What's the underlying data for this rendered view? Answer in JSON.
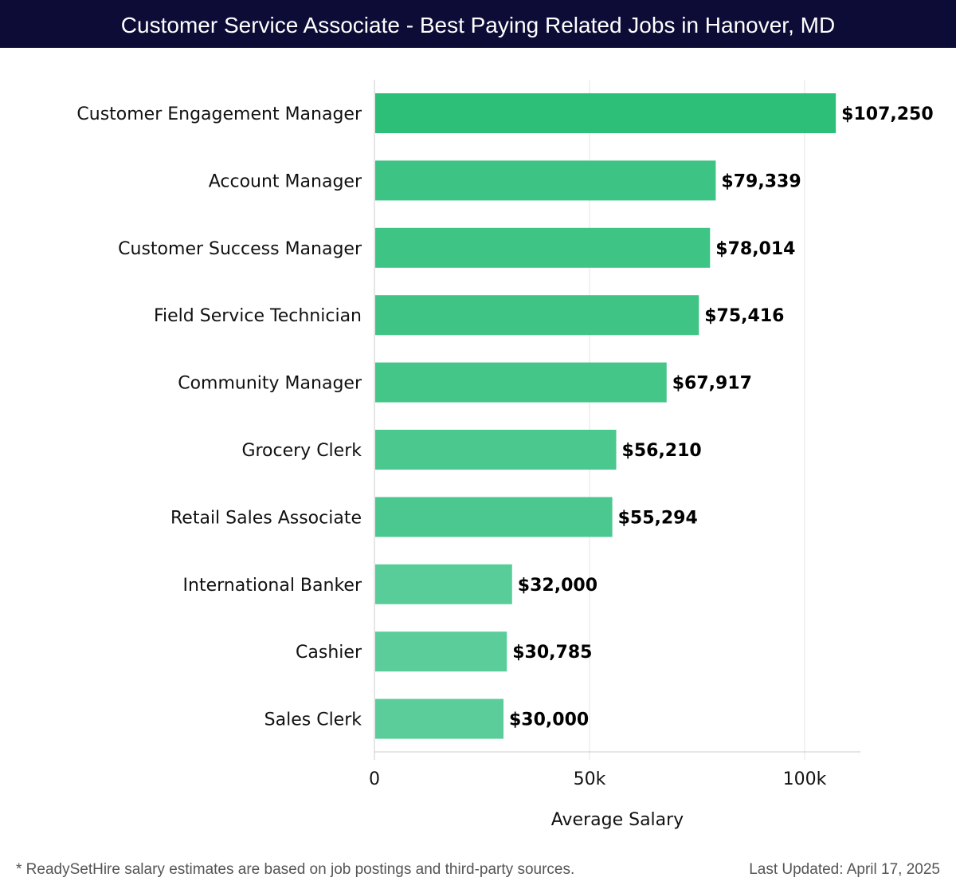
{
  "header": {
    "title": "Customer Service Associate - Best Paying Related Jobs in Hanover, MD"
  },
  "chart_data": {
    "type": "bar",
    "orientation": "horizontal",
    "categories": [
      "Customer Engagement Manager",
      "Account Manager",
      "Customer Success Manager",
      "Field Service Technician",
      "Community Manager",
      "Grocery Clerk",
      "Retail Sales Associate",
      "International Banker",
      "Cashier",
      "Sales Clerk"
    ],
    "values": [
      107250,
      79339,
      78014,
      75416,
      67917,
      56210,
      55294,
      32000,
      30785,
      30000
    ],
    "value_labels": [
      "$107,250",
      "$79,339",
      "$78,014",
      "$75,416",
      "$67,917",
      "$56,210",
      "$55,294",
      "$32,000",
      "$30,785",
      "$30,000"
    ],
    "xlabel": "Average Salary",
    "ylabel": "",
    "xlim": [
      0,
      113000
    ],
    "xticks": [
      0,
      50000,
      100000
    ],
    "xtick_labels": [
      "0",
      "50k",
      "100k"
    ],
    "grid": true,
    "colors": {
      "max": "#2dbe78",
      "min": "#5acd9a"
    }
  },
  "footer": {
    "note": "* ReadySetHire salary estimates are based on job postings and third-party sources.",
    "updated": "Last Updated: April 17, 2025"
  }
}
